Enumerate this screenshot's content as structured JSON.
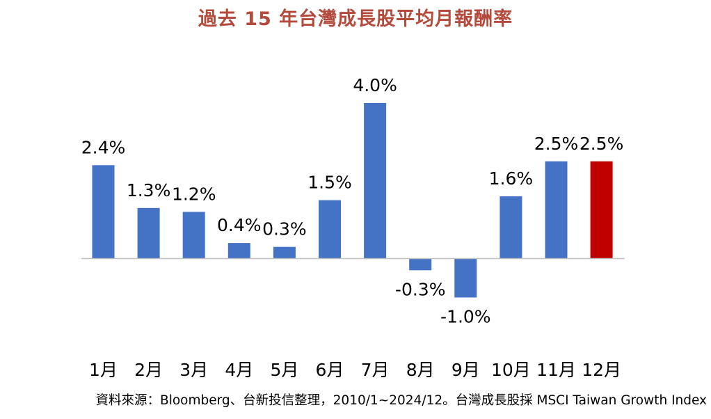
{
  "chart_data": {
    "type": "bar",
    "title": "過去 15 年台灣成長股平均月報酬率",
    "categories": [
      "1月",
      "2月",
      "3月",
      "4月",
      "5月",
      "6月",
      "7月",
      "8月",
      "9月",
      "10月",
      "11月",
      "12月"
    ],
    "values": [
      2.4,
      1.3,
      1.2,
      0.4,
      0.3,
      1.5,
      4.0,
      -0.3,
      -1.0,
      1.6,
      2.5,
      2.5
    ],
    "data_labels": [
      "2.4%",
      "1.3%",
      "1.2%",
      "0.4%",
      "0.3%",
      "1.5%",
      "4.0%",
      "-0.3%",
      "-1.0%",
      "1.6%",
      "2.5%",
      "2.5%"
    ],
    "xlabel": "",
    "ylabel": "",
    "ylim": [
      -1.0,
      4.0
    ],
    "grid": false,
    "legend": "none",
    "highlight_index": 11,
    "colors": {
      "bar": "#4472C4",
      "highlight": "#C00000",
      "title": "#B34A3C",
      "axis": "#BFBFBF"
    }
  },
  "source_note": "資料來源：Bloomberg、台新投信整理，2010/1~2024/12。台灣成長股採 MSCI Taiwan Growth Index"
}
